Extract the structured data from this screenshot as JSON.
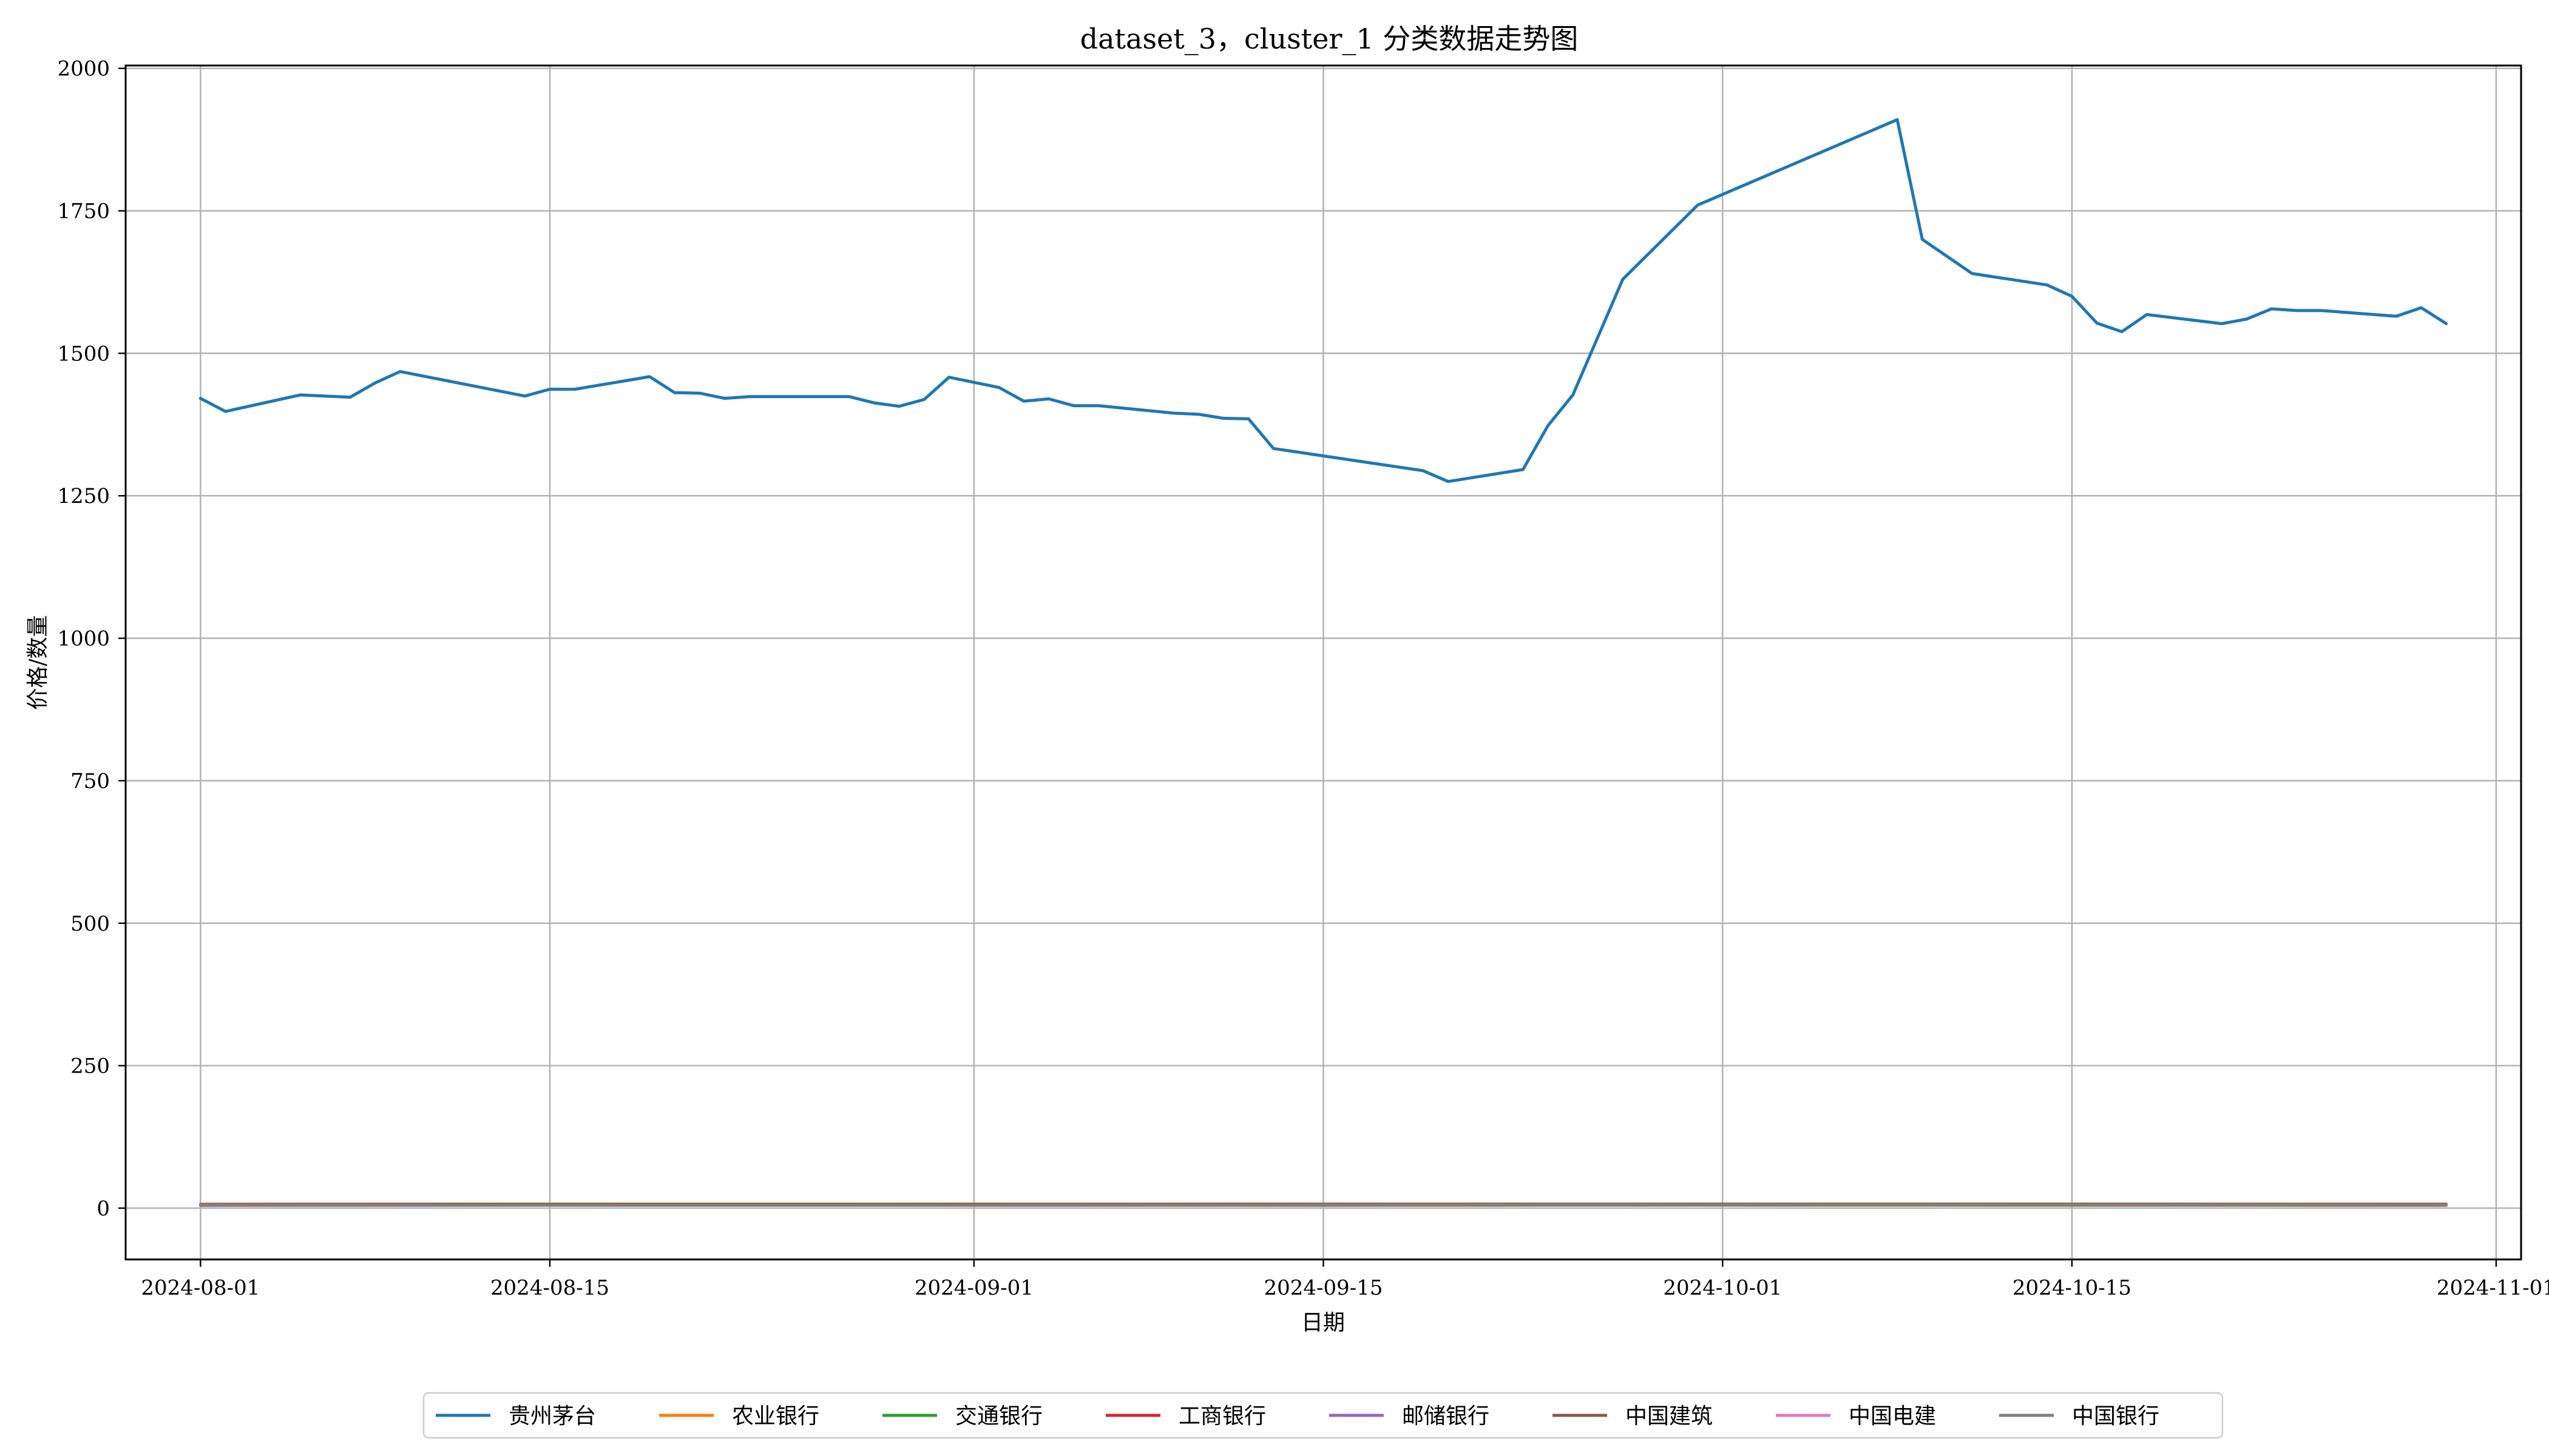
{
  "chart_data": {
    "type": "line",
    "title": "dataset_3，cluster_1 分类数据走势图",
    "xlabel": "日期",
    "ylabel": "价格/数量",
    "xlim": [
      "2024-07-29",
      "2024-11-02"
    ],
    "ylim": [
      -90,
      2005
    ],
    "x_ticks": [
      "2024-08-01",
      "2024-08-15",
      "2024-09-01",
      "2024-09-15",
      "2024-10-01",
      "2024-10-15",
      "2024-11-01"
    ],
    "y_ticks": [
      0,
      250,
      500,
      750,
      1000,
      1250,
      1500,
      1750,
      2000
    ],
    "grid": true,
    "legend_position": "bottom-center",
    "series": [
      {
        "name": "贵州茅台",
        "color": "#1f77b4",
        "points": [
          [
            "2024-08-01",
            1421
          ],
          [
            "2024-08-02",
            1398
          ],
          [
            "2024-08-05",
            1427
          ],
          [
            "2024-08-07",
            1423
          ],
          [
            "2024-08-08",
            1448
          ],
          [
            "2024-08-09",
            1468
          ],
          [
            "2024-08-14",
            1425
          ],
          [
            "2024-08-15",
            1437
          ],
          [
            "2024-08-16",
            1437
          ],
          [
            "2024-08-19",
            1459
          ],
          [
            "2024-08-20",
            1431
          ],
          [
            "2024-08-21",
            1430
          ],
          [
            "2024-08-22",
            1421
          ],
          [
            "2024-08-23",
            1424
          ],
          [
            "2024-08-27",
            1424
          ],
          [
            "2024-08-28",
            1413
          ],
          [
            "2024-08-29",
            1407
          ],
          [
            "2024-08-30",
            1419
          ],
          [
            "2024-08-31",
            1458
          ],
          [
            "2024-09-02",
            1440
          ],
          [
            "2024-09-03",
            1416
          ],
          [
            "2024-09-04",
            1420
          ],
          [
            "2024-09-05",
            1408
          ],
          [
            "2024-09-06",
            1408
          ],
          [
            "2024-09-09",
            1395
          ],
          [
            "2024-09-10",
            1393
          ],
          [
            "2024-09-11",
            1386
          ],
          [
            "2024-09-12",
            1385
          ],
          [
            "2024-09-13",
            1333
          ],
          [
            "2024-09-19",
            1294
          ],
          [
            "2024-09-20",
            1275
          ],
          [
            "2024-09-23",
            1296
          ],
          [
            "2024-09-24",
            1373
          ],
          [
            "2024-09-25",
            1427
          ],
          [
            "2024-09-27",
            1630
          ],
          [
            "2024-09-30",
            1760
          ],
          [
            "2024-10-08",
            1910
          ],
          [
            "2024-10-09",
            1700
          ],
          [
            "2024-10-11",
            1640
          ],
          [
            "2024-10-14",
            1620
          ],
          [
            "2024-10-15",
            1600
          ],
          [
            "2024-10-16",
            1553
          ],
          [
            "2024-10-17",
            1538
          ],
          [
            "2024-10-18",
            1568
          ],
          [
            "2024-10-21",
            1552
          ],
          [
            "2024-10-22",
            1560
          ],
          [
            "2024-10-23",
            1578
          ],
          [
            "2024-10-24",
            1575
          ],
          [
            "2024-10-25",
            1575
          ],
          [
            "2024-10-28",
            1565
          ],
          [
            "2024-10-29",
            1580
          ],
          [
            "2024-10-30",
            1552
          ]
        ]
      },
      {
        "name": "农业银行",
        "color": "#ff7f0e",
        "points": [
          [
            "2024-08-01",
            4.9
          ],
          [
            "2024-08-30",
            5.1
          ],
          [
            "2024-09-30",
            5.2
          ],
          [
            "2024-10-30",
            5.0
          ]
        ]
      },
      {
        "name": "交通银行",
        "color": "#2ca02c",
        "points": [
          [
            "2024-08-01",
            7.2
          ],
          [
            "2024-08-30",
            7.3
          ],
          [
            "2024-09-30",
            7.4
          ],
          [
            "2024-10-30",
            7.3
          ]
        ]
      },
      {
        "name": "工商银行",
        "color": "#d62728",
        "points": [
          [
            "2024-08-01",
            6.5
          ],
          [
            "2024-08-30",
            6.6
          ],
          [
            "2024-09-30",
            6.6
          ],
          [
            "2024-10-30",
            6.4
          ]
        ]
      },
      {
        "name": "邮储银行",
        "color": "#9467bd",
        "points": [
          [
            "2024-08-01",
            5.0
          ],
          [
            "2024-08-30",
            4.9
          ],
          [
            "2024-09-30",
            5.2
          ],
          [
            "2024-10-30",
            5.1
          ]
        ]
      },
      {
        "name": "中国建筑",
        "color": "#8c564b",
        "points": [
          [
            "2024-08-01",
            5.5
          ],
          [
            "2024-08-30",
            5.6
          ],
          [
            "2024-09-30",
            6.1
          ],
          [
            "2024-10-30",
            5.7
          ]
        ]
      },
      {
        "name": "中国电建",
        "color": "#e377c2",
        "points": [
          [
            "2024-08-01",
            5.3
          ],
          [
            "2024-08-30",
            5.1
          ],
          [
            "2024-09-30",
            5.6
          ],
          [
            "2024-10-30",
            5.3
          ]
        ]
      },
      {
        "name": "中国银行",
        "color": "#7f7f7f",
        "points": [
          [
            "2024-08-01",
            4.5
          ],
          [
            "2024-08-15",
            5.0
          ],
          [
            "2024-08-30",
            4.8
          ],
          [
            "2024-09-15",
            4.6
          ],
          [
            "2024-09-30",
            5.0
          ],
          [
            "2024-10-15",
            4.7
          ],
          [
            "2024-10-30",
            4.6
          ]
        ]
      }
    ]
  }
}
